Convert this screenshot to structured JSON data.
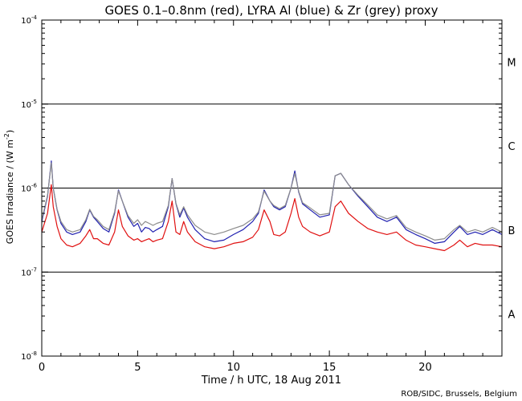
{
  "chart_data": {
    "type": "line",
    "title": "GOES 0.1–0.8nm (red), LYRA Al (blue) & Zr (grey) proxy",
    "xlabel": "Time / h UTC, 18 Aug 2011",
    "ylabel": "GOES Irradiance / (W m",
    "ylabel_sup": "-2",
    "ylabel_close": ")",
    "xlim": [
      0,
      24
    ],
    "ylim_log10": [
      -8,
      -4
    ],
    "xticks": [
      0,
      5,
      10,
      15,
      20
    ],
    "xtick_labels": [
      "0",
      "5",
      "10",
      "15",
      "20"
    ],
    "yticks_log10": [
      -8,
      -7,
      -6,
      -5,
      -4
    ],
    "ytick_base": "10",
    "ytick_exponents": [
      "-8",
      "-7",
      "-6",
      "-5",
      "-4"
    ],
    "class_levels_log10": [
      -7,
      -6,
      -5
    ],
    "class_labels": [
      {
        "label": "M",
        "center_log10": -4.5
      },
      {
        "label": "C",
        "center_log10": -5.5
      },
      {
        "label": "B",
        "center_log10": -6.5
      },
      {
        "label": "A",
        "center_log10": -7.5
      }
    ],
    "credit": "ROB/SIDC, Brussels, Belgium",
    "series": [
      {
        "name": "GOES 0.1-0.8nm",
        "color": "#e01010",
        "x": [
          0,
          0.3,
          0.5,
          0.6,
          0.8,
          1.0,
          1.3,
          1.6,
          2.0,
          2.3,
          2.5,
          2.7,
          2.9,
          3.2,
          3.5,
          3.8,
          4.0,
          4.2,
          4.5,
          4.8,
          5.0,
          5.2,
          5.4,
          5.6,
          5.8,
          6.0,
          6.3,
          6.6,
          6.8,
          7.0,
          7.2,
          7.4,
          7.6,
          8.0,
          8.5,
          9.0,
          9.5,
          10.0,
          10.5,
          11.0,
          11.3,
          11.6,
          11.9,
          12.1,
          12.4,
          12.7,
          13.0,
          13.2,
          13.4,
          13.6,
          14.0,
          14.5,
          15.0,
          15.3,
          15.6,
          16.0,
          16.5,
          17.0,
          17.5,
          18.0,
          18.5,
          19.0,
          19.5,
          20.0,
          20.5,
          21.0,
          21.5,
          21.8,
          22.2,
          22.6,
          23.0,
          23.5,
          24.0
        ],
        "y": [
          3e-07,
          5e-07,
          1.1e-06,
          6e-07,
          3.5e-07,
          2.5e-07,
          2.1e-07,
          2e-07,
          2.2e-07,
          2.7e-07,
          3.2e-07,
          2.5e-07,
          2.5e-07,
          2.2e-07,
          2.1e-07,
          3e-07,
          5.5e-07,
          3.5e-07,
          2.7e-07,
          2.4e-07,
          2.5e-07,
          2.3e-07,
          2.4e-07,
          2.5e-07,
          2.3e-07,
          2.4e-07,
          2.5e-07,
          4e-07,
          7e-07,
          3e-07,
          2.8e-07,
          4e-07,
          3e-07,
          2.3e-07,
          2e-07,
          1.9e-07,
          2e-07,
          2.2e-07,
          2.3e-07,
          2.6e-07,
          3.2e-07,
          5.5e-07,
          4e-07,
          2.8e-07,
          2.7e-07,
          3e-07,
          5e-07,
          7.5e-07,
          4.5e-07,
          3.5e-07,
          3e-07,
          2.7e-07,
          3e-07,
          6e-07,
          7e-07,
          5e-07,
          4e-07,
          3.3e-07,
          3e-07,
          2.8e-07,
          3e-07,
          2.4e-07,
          2.1e-07,
          2e-07,
          1.9e-07,
          1.8e-07,
          2.1e-07,
          2.4e-07,
          2e-07,
          2.2e-07,
          2.1e-07,
          2.1e-07,
          2e-07
        ]
      },
      {
        "name": "LYRA Al proxy",
        "color": "#2020b0",
        "x": [
          0,
          0.3,
          0.5,
          0.6,
          0.8,
          1.0,
          1.3,
          1.6,
          2.0,
          2.3,
          2.5,
          2.7,
          2.9,
          3.2,
          3.5,
          3.8,
          4.0,
          4.2,
          4.5,
          4.8,
          5.0,
          5.2,
          5.4,
          5.6,
          5.8,
          6.0,
          6.3,
          6.6,
          6.8,
          7.0,
          7.2,
          7.4,
          7.6,
          8.0,
          8.5,
          9.0,
          9.5,
          10.0,
          10.5,
          11.0,
          11.3,
          11.6,
          11.9,
          12.1,
          12.4,
          12.7,
          13.0,
          13.2,
          13.4,
          13.6,
          14.0,
          14.5,
          15.0,
          15.3,
          15.6,
          16.0,
          16.5,
          17.0,
          17.5,
          18.0,
          18.5,
          19.0,
          19.5,
          20.0,
          20.5,
          21.0,
          21.5,
          21.8,
          22.2,
          22.6,
          23.0,
          23.5,
          24.0
        ],
        "y": [
          4e-07,
          8e-07,
          2.1e-06,
          1e-06,
          5.5e-07,
          3.8e-07,
          3e-07,
          2.8e-07,
          3e-07,
          4e-07,
          5.5e-07,
          4.5e-07,
          4e-07,
          3.3e-07,
          3e-07,
          5e-07,
          9.5e-07,
          7e-07,
          4.5e-07,
          3.5e-07,
          3.8e-07,
          3e-07,
          3.4e-07,
          3.3e-07,
          3e-07,
          3.2e-07,
          3.5e-07,
          6e-07,
          1.3e-06,
          6.5e-07,
          4.5e-07,
          5.8e-07,
          4.5e-07,
          3.2e-07,
          2.5e-07,
          2.3e-07,
          2.4e-07,
          2.8e-07,
          3.2e-07,
          4e-07,
          5e-07,
          9.5e-07,
          7e-07,
          6e-07,
          5.5e-07,
          6e-07,
          1e-06,
          1.6e-06,
          9e-07,
          6.5e-07,
          5.5e-07,
          4.5e-07,
          4.8e-07,
          1.4e-06,
          1.5e-06,
          1.1e-06,
          8e-07,
          6e-07,
          4.5e-07,
          4e-07,
          4.5e-07,
          3.2e-07,
          2.8e-07,
          2.5e-07,
          2.2e-07,
          2.3e-07,
          3e-07,
          3.5e-07,
          2.8e-07,
          3e-07,
          2.8e-07,
          3.2e-07,
          2.8e-07
        ]
      },
      {
        "name": "LYRA Zr proxy",
        "color": "#8c8c8c",
        "x": [
          0,
          0.3,
          0.5,
          0.6,
          0.8,
          1.0,
          1.3,
          1.6,
          2.0,
          2.3,
          2.5,
          2.7,
          2.9,
          3.2,
          3.5,
          3.8,
          4.0,
          4.2,
          4.5,
          4.8,
          5.0,
          5.2,
          5.4,
          5.6,
          5.8,
          6.0,
          6.3,
          6.6,
          6.8,
          7.0,
          7.2,
          7.4,
          7.6,
          8.0,
          8.5,
          9.0,
          9.5,
          10.0,
          10.5,
          11.0,
          11.3,
          11.6,
          11.9,
          12.1,
          12.4,
          12.7,
          13.0,
          13.2,
          13.4,
          13.6,
          14.0,
          14.5,
          15.0,
          15.3,
          15.6,
          16.0,
          16.5,
          17.0,
          17.5,
          18.0,
          18.5,
          19.0,
          19.5,
          20.0,
          20.5,
          21.0,
          21.5,
          21.8,
          22.2,
          22.6,
          23.0,
          23.5,
          24.0
        ],
        "y": [
          4.2e-07,
          8.2e-07,
          2e-06,
          1e-06,
          5.6e-07,
          4e-07,
          3.2e-07,
          3e-07,
          3.2e-07,
          4.2e-07,
          5.6e-07,
          4.6e-07,
          4.2e-07,
          3.5e-07,
          3.2e-07,
          5.2e-07,
          9.3e-07,
          7e-07,
          4.7e-07,
          3.8e-07,
          4.2e-07,
          3.6e-07,
          4e-07,
          3.8e-07,
          3.6e-07,
          3.8e-07,
          4e-07,
          6.2e-07,
          1.3e-06,
          6.6e-07,
          4.8e-07,
          6e-07,
          4.8e-07,
          3.6e-07,
          3e-07,
          2.8e-07,
          3e-07,
          3.3e-07,
          3.6e-07,
          4.3e-07,
          5.2e-07,
          9.2e-07,
          7e-07,
          6.2e-07,
          5.7e-07,
          6.2e-07,
          1e-06,
          1.5e-06,
          9.2e-07,
          6.7e-07,
          5.8e-07,
          4.8e-07,
          5e-07,
          1.4e-06,
          1.5e-06,
          1.1e-06,
          8.2e-07,
          6.3e-07,
          4.8e-07,
          4.3e-07,
          4.7e-07,
          3.4e-07,
          3e-07,
          2.7e-07,
          2.4e-07,
          2.5e-07,
          3.2e-07,
          3.6e-07,
          3e-07,
          3.2e-07,
          3e-07,
          3.4e-07,
          3e-07
        ]
      }
    ]
  }
}
